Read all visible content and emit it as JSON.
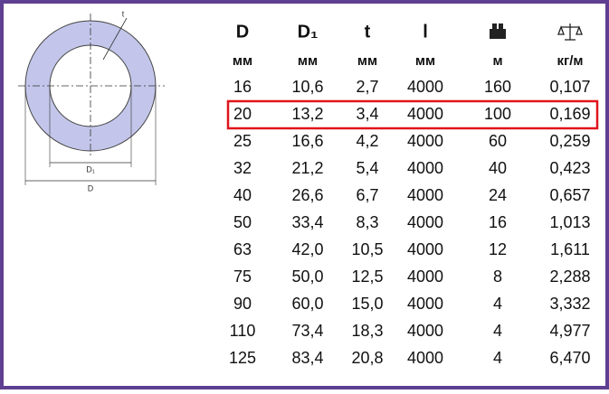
{
  "diagram": {
    "t_label": "t",
    "d1_label": "D₁",
    "d_label": "D"
  },
  "table": {
    "headers": [
      "D",
      "D₁",
      "t",
      "l",
      "",
      ""
    ],
    "units": [
      "мм",
      "мм",
      "мм",
      "мм",
      "м",
      "кг/м"
    ],
    "rows": [
      [
        "16",
        "10,6",
        "2,7",
        "4000",
        "160",
        "0,107"
      ],
      [
        "20",
        "13,2",
        "3,4",
        "4000",
        "100",
        "0,169"
      ],
      [
        "25",
        "16,6",
        "4,2",
        "4000",
        "60",
        "0,259"
      ],
      [
        "32",
        "21,2",
        "5,4",
        "4000",
        "40",
        "0,423"
      ],
      [
        "40",
        "26,6",
        "6,7",
        "4000",
        "24",
        "0,657"
      ],
      [
        "50",
        "33,4",
        "8,3",
        "4000",
        "16",
        "1,013"
      ],
      [
        "63",
        "42,0",
        "10,5",
        "4000",
        "12",
        "1,611"
      ],
      [
        "75",
        "50,0",
        "12,5",
        "4000",
        "8",
        "2,288"
      ],
      [
        "90",
        "60,0",
        "15,0",
        "4000",
        "4",
        "3,332"
      ],
      [
        "110",
        "73,4",
        "18,3",
        "4000",
        "4",
        "4,977"
      ],
      [
        "125",
        "83,4",
        "20,8",
        "4000",
        "4",
        "6,470"
      ]
    ],
    "highlighted_row": 1
  }
}
